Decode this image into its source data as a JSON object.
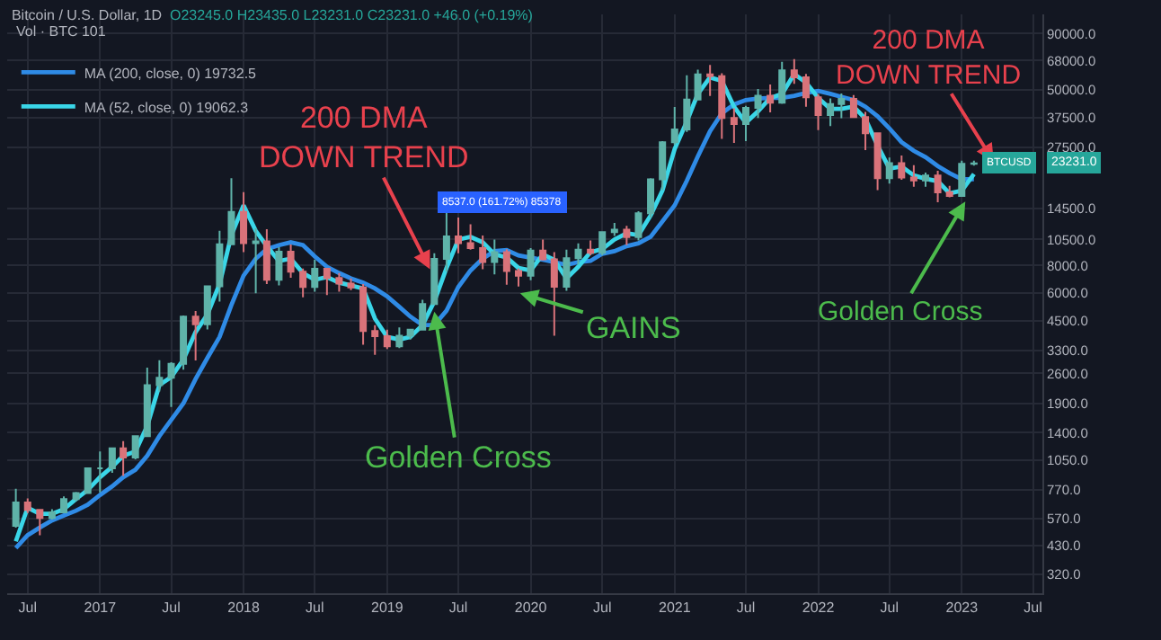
{
  "chart_data": {
    "type": "candlestick",
    "title": "Bitcoin / U.S. Dollar, 1D",
    "subtitle": "O23245.0 H23435.0 L23231.0 C23231.0 +46.0 (+0.19%)",
    "x": [
      "2016-06",
      "2016-07",
      "2016-08",
      "2016-09",
      "2016-10",
      "2016-11",
      "2016-12",
      "2017-01",
      "2017-02",
      "2017-03",
      "2017-04",
      "2017-05",
      "2017-06",
      "2017-07",
      "2017-08",
      "2017-09",
      "2017-10",
      "2017-11",
      "2017-12",
      "2018-01",
      "2018-02",
      "2018-03",
      "2018-04",
      "2018-05",
      "2018-06",
      "2018-07",
      "2018-08",
      "2018-09",
      "2018-10",
      "2018-11",
      "2018-12",
      "2019-01",
      "2019-02",
      "2019-03",
      "2019-04",
      "2019-05",
      "2019-06",
      "2019-07",
      "2019-08",
      "2019-09",
      "2019-10",
      "2019-11",
      "2019-12",
      "2020-01",
      "2020-02",
      "2020-03",
      "2020-04",
      "2020-05",
      "2020-06",
      "2020-07",
      "2020-08",
      "2020-09",
      "2020-10",
      "2020-11",
      "2020-12",
      "2021-01",
      "2021-02",
      "2021-03",
      "2021-04",
      "2021-05",
      "2021-06",
      "2021-07",
      "2021-08",
      "2021-09",
      "2021-10",
      "2021-11",
      "2021-12",
      "2022-01",
      "2022-02",
      "2022-03",
      "2022-04",
      "2022-05",
      "2022-06",
      "2022-07",
      "2022-08",
      "2022-09",
      "2022-10",
      "2022-11",
      "2022-12",
      "2023-01",
      "2023-02"
    ],
    "ohlc": [
      [
        530,
        780,
        520,
        675
      ],
      [
        675,
        705,
        605,
        625
      ],
      [
        625,
        630,
        480,
        575
      ],
      [
        575,
        630,
        565,
        610
      ],
      [
        610,
        720,
        605,
        700
      ],
      [
        700,
        755,
        685,
        745
      ],
      [
        745,
        975,
        740,
        965
      ],
      [
        965,
        1150,
        750,
        965
      ],
      [
        965,
        1200,
        920,
        1190
      ],
      [
        1190,
        1280,
        890,
        1080
      ],
      [
        1080,
        1350,
        1060,
        1350
      ],
      [
        1350,
        2760,
        1350,
        2300
      ],
      [
        2300,
        2980,
        2150,
        2480
      ],
      [
        2480,
        2920,
        1830,
        2870
      ],
      [
        2870,
        4750,
        2700,
        4700
      ],
      [
        4700,
        4980,
        2970,
        4340
      ],
      [
        4340,
        6470,
        4110,
        6450
      ],
      [
        6450,
        11500,
        5500,
        10000
      ],
      [
        10000,
        19900,
        10000,
        14000
      ],
      [
        14000,
        17200,
        9200,
        10100
      ],
      [
        10100,
        11800,
        6000,
        10300
      ],
      [
        10300,
        11700,
        6600,
        6900
      ],
      [
        6900,
        9700,
        6500,
        9240
      ],
      [
        9240,
        9980,
        7050,
        7500
      ],
      [
        7500,
        7760,
        5750,
        6400
      ],
      [
        6400,
        8500,
        6100,
        7730
      ],
      [
        7730,
        7760,
        5880,
        7030
      ],
      [
        7030,
        7400,
        6100,
        6630
      ],
      [
        6630,
        7000,
        6200,
        6370
      ],
      [
        6370,
        6600,
        3500,
        4040
      ],
      [
        4040,
        4300,
        3150,
        3830
      ],
      [
        3830,
        4100,
        3350,
        3450
      ],
      [
        3450,
        4200,
        3380,
        3850
      ],
      [
        3850,
        4100,
        3700,
        4100
      ],
      [
        4100,
        5600,
        4080,
        5350
      ],
      [
        5350,
        9100,
        5300,
        8570
      ],
      [
        8570,
        13900,
        7500,
        10850
      ],
      [
        10850,
        13200,
        9100,
        10100
      ],
      [
        10100,
        12300,
        9450,
        9600
      ],
      [
        9600,
        10950,
        7700,
        8300
      ],
      [
        8300,
        10500,
        7300,
        9200
      ],
      [
        9200,
        9500,
        6550,
        7560
      ],
      [
        7560,
        7750,
        6430,
        7200
      ],
      [
        7200,
        9600,
        6860,
        9350
      ],
      [
        9350,
        10500,
        8450,
        8540
      ],
      [
        8540,
        9200,
        3850,
        6420
      ],
      [
        6420,
        9450,
        6150,
        8650
      ],
      [
        8650,
        10080,
        8100,
        9450
      ],
      [
        9450,
        10400,
        8900,
        9140
      ],
      [
        9140,
        11450,
        8900,
        11350
      ],
      [
        11350,
        12480,
        10900,
        11650
      ],
      [
        11650,
        12100,
        9900,
        10780
      ],
      [
        10780,
        14100,
        10400,
        13800
      ],
      [
        13800,
        19900,
        13200,
        19700
      ],
      [
        19700,
        29300,
        17600,
        28990
      ],
      [
        28990,
        41900,
        28200,
        33100
      ],
      [
        33100,
        58300,
        32300,
        45200
      ],
      [
        45200,
        61800,
        45000,
        58800
      ],
      [
        58800,
        64900,
        47000,
        57700
      ],
      [
        57700,
        59500,
        30000,
        37300
      ],
      [
        37300,
        41300,
        28800,
        35000
      ],
      [
        35000,
        42400,
        29300,
        41500
      ],
      [
        41500,
        50500,
        37300,
        47100
      ],
      [
        47100,
        52900,
        39600,
        43800
      ],
      [
        43800,
        67000,
        43300,
        61300
      ],
      [
        61300,
        69000,
        53300,
        57000
      ],
      [
        57000,
        59100,
        42000,
        46300
      ],
      [
        46300,
        47900,
        32900,
        38500
      ],
      [
        38500,
        45800,
        34300,
        43200
      ],
      [
        43200,
        48200,
        37200,
        45500
      ],
      [
        45500,
        47400,
        37700,
        37700
      ],
      [
        37700,
        39800,
        26700,
        31800
      ],
      [
        31800,
        31900,
        17600,
        19900
      ],
      [
        19900,
        24700,
        18800,
        23300
      ],
      [
        23300,
        25200,
        19600,
        20050
      ],
      [
        20050,
        22800,
        18200,
        19430
      ],
      [
        19430,
        21100,
        18200,
        20500
      ],
      [
        20500,
        21500,
        15500,
        17170
      ],
      [
        17170,
        18400,
        16300,
        16550
      ],
      [
        16550,
        23900,
        16500,
        23130
      ],
      [
        23130,
        23900,
        22700,
        23230
      ]
    ],
    "series": [
      {
        "type": "line",
        "name": "MA (200, close, 0) 19732.5",
        "color": "#2f8be6",
        "values": [
          420,
          480,
          520,
          560,
          590,
          620,
          660,
          730,
          800,
          880,
          950,
          1100,
          1350,
          1600,
          1900,
          2450,
          3050,
          3800,
          5300,
          7200,
          8600,
          9500,
          9900,
          10200,
          9900,
          8800,
          7900,
          7400,
          7000,
          6700,
          6300,
          5800,
          5200,
          4700,
          4300,
          4300,
          5000,
          6400,
          7600,
          8600,
          9300,
          9400,
          8900,
          8700,
          8500,
          8300,
          8050,
          8300,
          8400,
          9050,
          9300,
          9800,
          10100,
          10800,
          12700,
          15000,
          19400,
          25000,
          32500,
          39200,
          43000,
          45000,
          45700,
          46000,
          46000,
          47000,
          48500,
          49500,
          48000,
          46500,
          45000,
          42000,
          38000,
          33500,
          29000,
          26500,
          24800,
          22600,
          21000,
          19700,
          19700
        ]
      },
      {
        "type": "line",
        "name": "MA (52, close, 0) 19062.3",
        "color": "#3ad6e8",
        "values": [
          450,
          640,
          600,
          600,
          630,
          700,
          770,
          880,
          980,
          1100,
          1150,
          1500,
          2300,
          2500,
          3000,
          4000,
          4800,
          6600,
          11000,
          15000,
          11500,
          9800,
          8400,
          8600,
          7400,
          6900,
          7100,
          6700,
          6500,
          6300,
          4600,
          3800,
          3700,
          3800,
          4300,
          5500,
          7800,
          10500,
          10800,
          10200,
          9000,
          8700,
          7800,
          7600,
          9000,
          8500,
          7000,
          7900,
          9200,
          9500,
          10500,
          11200,
          11000,
          13500,
          17500,
          27000,
          36000,
          48000,
          57000,
          55000,
          42000,
          35500,
          40000,
          46000,
          48000,
          59000,
          54000,
          46000,
          41000,
          41000,
          42000,
          37000,
          28000,
          22000,
          22500,
          20500,
          19800,
          19300,
          17000,
          17500,
          20800
        ]
      }
    ],
    "log": true,
    "ylim": [
      262,
      110000
    ],
    "yticks": [
      {
        "value": 320,
        "label": "320.0"
      },
      {
        "value": 430,
        "label": "430.0"
      },
      {
        "value": 570,
        "label": "570.0"
      },
      {
        "value": 770,
        "label": "770.0"
      },
      {
        "value": 1050,
        "label": "1050.0"
      },
      {
        "value": 1400,
        "label": "1400.0"
      },
      {
        "value": 1900,
        "label": "1900.0"
      },
      {
        "value": 2600,
        "label": "2600.0"
      },
      {
        "value": 3300,
        "label": "3300.0"
      },
      {
        "value": 4500,
        "label": "4500.0"
      },
      {
        "value": 6000,
        "label": "6000.0"
      },
      {
        "value": 8000,
        "label": "8000.0"
      },
      {
        "value": 10500,
        "label": "10500.0"
      },
      {
        "value": 14500,
        "label": "14500.0"
      },
      {
        "value": 27500,
        "label": "27500.0"
      },
      {
        "value": 37500,
        "label": "37500.0"
      },
      {
        "value": 50000,
        "label": "50000.0"
      },
      {
        "value": 68000,
        "label": "68000.0"
      },
      {
        "value": 90000,
        "label": "90000.0"
      }
    ],
    "xlim": [
      "2016-05-10",
      "2023-07-25"
    ],
    "xticks": [
      {
        "value": "2016-07-01",
        "label": "Jul"
      },
      {
        "value": "2017-01-01",
        "label": "2017"
      },
      {
        "value": "2017-07-01",
        "label": "Jul"
      },
      {
        "value": "2018-01-01",
        "label": "2018"
      },
      {
        "value": "2018-07-01",
        "label": "Jul"
      },
      {
        "value": "2019-01-01",
        "label": "2019"
      },
      {
        "value": "2019-07-01",
        "label": "Jul"
      },
      {
        "value": "2020-01-01",
        "label": "2020"
      },
      {
        "value": "2020-07-01",
        "label": "Jul"
      },
      {
        "value": "2021-01-01",
        "label": "2021"
      },
      {
        "value": "2021-07-01",
        "label": "Jul"
      },
      {
        "value": "2022-01-01",
        "label": "2022"
      },
      {
        "value": "2022-07-01",
        "label": "Jul"
      },
      {
        "value": "2023-01-01",
        "label": "2023"
      },
      {
        "value": "2023-07-01",
        "label": "Jul"
      }
    ],
    "grid": true,
    "legend": "top left",
    "annotations": [
      {
        "text": "200 DMA\nDOWN TREND",
        "x": "2019-04-20",
        "y": 7700
      },
      {
        "text": "Golden Cross",
        "x": "2019-05-01",
        "y": 4950
      },
      {
        "text": "GAINS",
        "x": "2019-12-05",
        "y": 6000
      },
      "200 DMA\nDOWN TREND",
      {
        "text": "Golden Cross",
        "x": "2023-01-10",
        "y": 15600
      },
      "8537.0 (161.72%) 85378",
      "Vol · BTC 101",
      {
        "text": "BTCUSD",
        "x": "2023-02-08",
        "y": 23231
      },
      {
        "text": "23231.0",
        "y": 23231
      }
    ]
  }
}
